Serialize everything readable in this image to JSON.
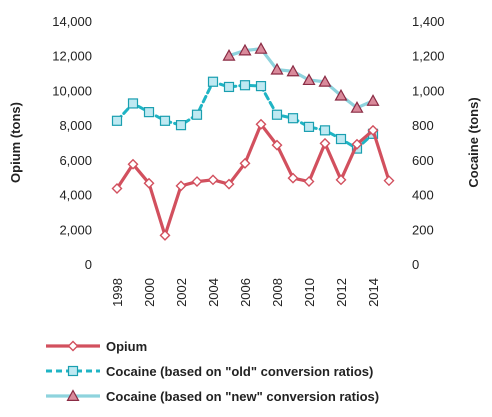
{
  "chart_data": {
    "type": "line",
    "x": [
      1998,
      1999,
      2000,
      2001,
      2002,
      2003,
      2004,
      2005,
      2006,
      2007,
      2008,
      2009,
      2010,
      2011,
      2012,
      2013,
      2014,
      2015
    ],
    "x_tick_labels": [
      "1998",
      "2000",
      "2002",
      "2004",
      "2006",
      "2008",
      "2010",
      "2012",
      "2014"
    ],
    "xlim": [
      1998,
      2015
    ],
    "y_left": {
      "label": "Opium (tons)",
      "ylim": [
        0,
        14000
      ],
      "tick_labels": [
        "0",
        "2,000",
        "4,000",
        "6,000",
        "8,000",
        "10,000",
        "12,000",
        "14,000"
      ]
    },
    "y_right": {
      "label": "Cocaine (tons)",
      "ylim": [
        0,
        1400
      ],
      "tick_labels": [
        "0",
        "200",
        "400",
        "600",
        "800",
        "1,000",
        "1,200",
        "1,400"
      ]
    },
    "grid": false,
    "legend_position": "bottom",
    "series": [
      {
        "name": "Opium",
        "axis": "left",
        "color": "#d2505e",
        "line_style": "solid",
        "marker": "diamond",
        "values": [
          4350,
          5750,
          4650,
          1650,
          4500,
          4750,
          4850,
          4600,
          5800,
          8050,
          6850,
          4950,
          4750,
          6950,
          4850,
          6900,
          7700,
          4800
        ]
      },
      {
        "name": "Cocaine (based on \"old\" conversion ratios)",
        "axis": "right",
        "color": "#1fb4c4",
        "line_style": "dashed",
        "marker": "square",
        "values": [
          825,
          925,
          875,
          825,
          800,
          860,
          1050,
          1020,
          1030,
          1025,
          860,
          840,
          790,
          770,
          720,
          665,
          750,
          null
        ]
      },
      {
        "name": "Cocaine (based on \"new\" conversion ratios)",
        "axis": "right",
        "color": "#8ed3dd",
        "line_style": "solid",
        "marker": "triangle",
        "values": [
          null,
          null,
          null,
          null,
          null,
          null,
          null,
          1200,
          1230,
          1240,
          1120,
          1110,
          1060,
          1050,
          970,
          900,
          940,
          null
        ]
      }
    ]
  }
}
